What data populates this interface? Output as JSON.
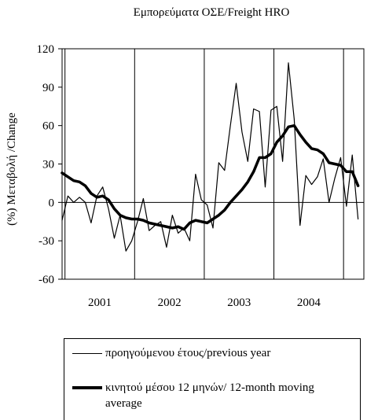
{
  "chart_data": {
    "type": "line",
    "title": "Εμπορεύματα ΟΣΕ/Freight HRO",
    "ylabel": "(%) Μεταβολή /Change",
    "xlabel": "",
    "ylim": [
      -60,
      120
    ],
    "yticks": [
      -60,
      -30,
      0,
      30,
      60,
      90,
      120
    ],
    "year_labels": [
      "2001",
      "2002",
      "2003",
      "2004"
    ],
    "x_months": [
      "2000-12",
      "2001-01",
      "2001-02",
      "2001-03",
      "2001-04",
      "2001-05",
      "2001-06",
      "2001-07",
      "2001-08",
      "2001-09",
      "2001-10",
      "2001-11",
      "2001-12",
      "2002-01",
      "2002-02",
      "2002-03",
      "2002-04",
      "2002-05",
      "2002-06",
      "2002-07",
      "2002-08",
      "2002-09",
      "2002-10",
      "2002-11",
      "2002-12",
      "2003-01",
      "2003-02",
      "2003-03",
      "2003-04",
      "2003-05",
      "2003-06",
      "2003-07",
      "2003-08",
      "2003-09",
      "2003-10",
      "2003-11",
      "2003-12",
      "2004-01",
      "2004-02",
      "2004-03",
      "2004-04",
      "2004-05",
      "2004-06",
      "2004-07",
      "2004-08",
      "2004-09",
      "2004-10",
      "2004-11",
      "2004-12",
      "2005-01",
      "2005-02",
      "2005-03",
      "2005-04"
    ],
    "grid": "vertical lines at year boundaries",
    "legend_position": "bottom",
    "series": [
      {
        "name": "προηγούμενου έτους/previous year",
        "style": "thin",
        "values": [
          -14,
          5,
          0,
          4,
          0,
          -16,
          5,
          12,
          -5,
          -28,
          -10,
          -38,
          -30,
          -15,
          3,
          -22,
          -18,
          -15,
          -35,
          -10,
          -24,
          -20,
          -30,
          22,
          2,
          -2,
          -20,
          31,
          25,
          60,
          93,
          55,
          32,
          73,
          71,
          12,
          72,
          75,
          32,
          109,
          65,
          -18,
          21,
          14,
          20,
          34,
          0,
          19,
          35,
          -3,
          37,
          -13,
          null
        ]
      },
      {
        "name": "κινητού μέσου 12 μηνών/ 12-month moving average",
        "style": "thick",
        "values": [
          23,
          20,
          17,
          16,
          13,
          7,
          4,
          5,
          2,
          -5,
          -10,
          -12,
          -13,
          -13,
          -14,
          -16,
          -17,
          -18,
          -19,
          -20,
          -19,
          -21,
          -16,
          -14,
          -15,
          -16,
          -13,
          -10,
          -6,
          0,
          5,
          10,
          16,
          24,
          35,
          35,
          38,
          47,
          52,
          59,
          60,
          53,
          47,
          42,
          41,
          38,
          31,
          30,
          29,
          24,
          24,
          13,
          null
        ]
      }
    ]
  }
}
